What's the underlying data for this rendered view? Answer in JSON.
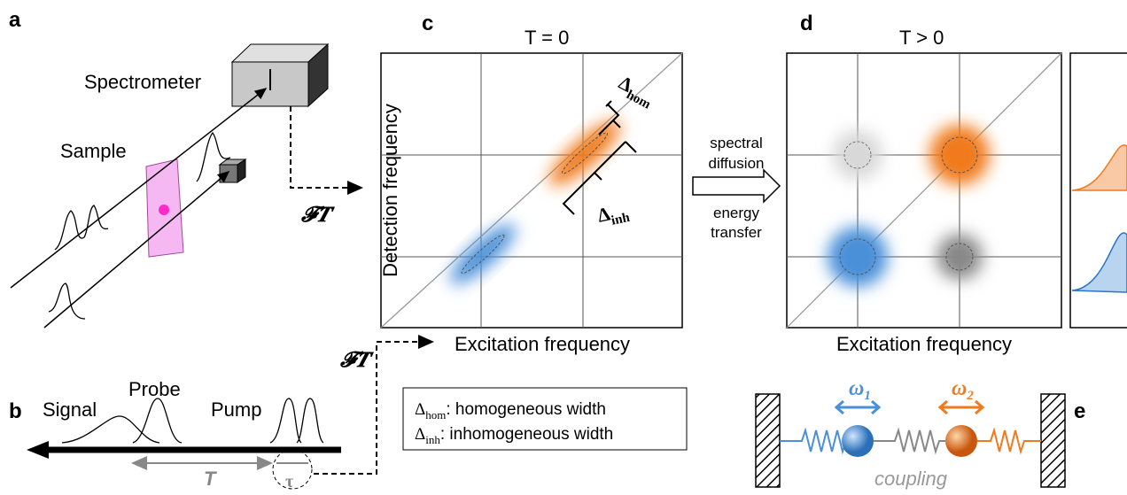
{
  "panel_a": {
    "label": "a",
    "spectrometer": "Spectrometer",
    "sample": "Sample",
    "ft": "𝓕𝑻"
  },
  "panel_b": {
    "label": "b",
    "signal": "Signal",
    "probe": "Probe",
    "pump": "Pump",
    "waiting_time": "T",
    "coherence_time": "τ",
    "ft": "𝓕𝑻"
  },
  "panel_c": {
    "label": "c",
    "title": "T = 0",
    "y_label": "Detection frequency",
    "x_label": "Excitation frequency",
    "delta_hom": {
      "symbol": "Δ",
      "sub": "hom"
    },
    "delta_inh": {
      "symbol": "Δ",
      "sub": "inh"
    }
  },
  "transition": {
    "upper": [
      "spectral",
      "diffusion"
    ],
    "lower": [
      "energy",
      "transfer"
    ]
  },
  "panel_d": {
    "label": "d",
    "title": "T > 0",
    "x_label": "Excitation frequency"
  },
  "legend": [
    {
      "symbol": "Δ",
      "sub": "hom",
      "text": ": homogeneous width"
    },
    {
      "symbol": "Δ",
      "sub": "inh",
      "text": ": inhomogeneous width"
    }
  ],
  "panel_e": {
    "label": "e",
    "omega1": {
      "symbol": "ω",
      "sub": "1"
    },
    "omega2": {
      "symbol": "ω",
      "sub": "2"
    },
    "coupling": "coupling"
  }
}
